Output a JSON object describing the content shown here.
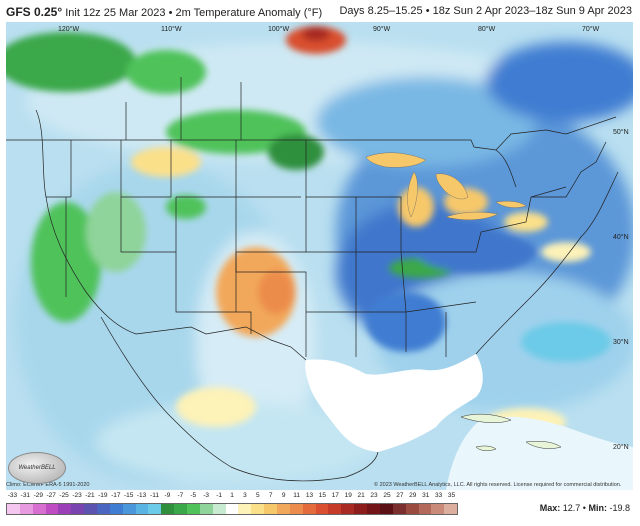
{
  "header": {
    "model": "GFS 0.25°",
    "init": "Init 12z 25 Mar 2023",
    "sep": "•",
    "field": "2m Temperature Anomaly (°F)",
    "days": "Days 8.25–15.25",
    "range": "18z Sun 2 Apr 2023–18z Sun 9 Apr 2023"
  },
  "map": {
    "lon_labels": [
      "120°W",
      "110°W",
      "100°W",
      "90°W",
      "80°W",
      "70°W"
    ],
    "lat_labels": [
      "50°N",
      "40°N",
      "30°N",
      "20°N"
    ],
    "climo": "Climo: ECMWF ERA-5 1991-2020",
    "copyright": "© 2023 WeatherBELL Analytics, LLC. All rights reserved. License required for commercial distribution.",
    "logo_text": "WeatherBELL"
  },
  "colorbar": {
    "ticks": [
      "-33",
      "-31",
      "-29",
      "-27",
      "-25",
      "-23",
      "-21",
      "-19",
      "-17",
      "-15",
      "-13",
      "-11",
      "-9",
      "-7",
      "-5",
      "-3",
      "-1",
      "1",
      "3",
      "5",
      "7",
      "9",
      "11",
      "13",
      "15",
      "17",
      "19",
      "21",
      "23",
      "25",
      "27",
      "29",
      "31",
      "33",
      "35"
    ],
    "colors": [
      "#f5c6ef",
      "#e89ae0",
      "#d66fd0",
      "#c04cc4",
      "#9b3fb8",
      "#7a44b0",
      "#5c52b0",
      "#4a66c0",
      "#3f7dd2",
      "#4a97dc",
      "#59b4e4",
      "#6ccbe8",
      "#2f8f3c",
      "#3aa848",
      "#4fc25a",
      "#8fd49a",
      "#c7ebd1",
      "#ffffff",
      "#fdf2b8",
      "#fbe08a",
      "#f7c86a",
      "#f2a85a",
      "#ec8c4c",
      "#e46c3c",
      "#d94f2f",
      "#c63b28",
      "#a82a22",
      "#8c1d1c",
      "#721418",
      "#5a1014",
      "#7a2e2e",
      "#9a4a3f",
      "#b46a5a",
      "#c98a7a",
      "#dcae9e"
    ]
  },
  "stats": {
    "max_label": "Max:",
    "max": "12.7",
    "sep": "•",
    "min_label": "Min:",
    "min": "-19.8"
  }
}
